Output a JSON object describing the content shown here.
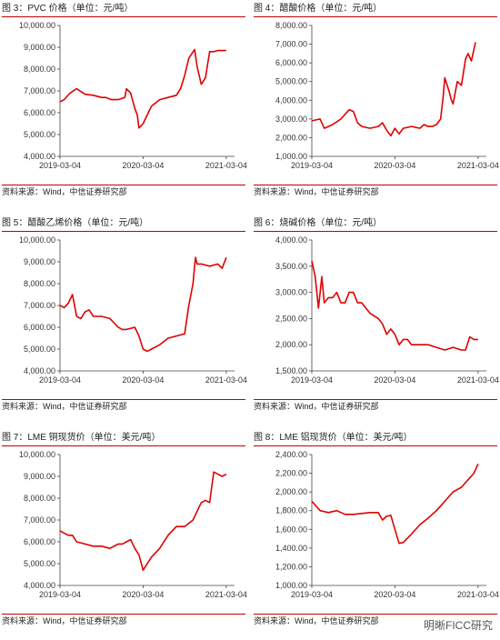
{
  "colors": {
    "series": "#e00000",
    "rule": "#c00000"
  },
  "source_text": "资料来源：Wind，中信证券研究部",
  "watermark": "明晰FICC研究",
  "chart_data": [
    {
      "type": "line",
      "title": "图 3：PVC 价格（单位：元/吨）",
      "ylim": [
        4000,
        10000
      ],
      "yticks": [
        4000,
        5000,
        6000,
        7000,
        8000,
        9000,
        10000
      ],
      "ytick_labels": [
        "4,000.00",
        "5,000.00",
        "6,000.00",
        "7,000.00",
        "8,000.00",
        "9,000.00",
        "10,000.00"
      ],
      "xticks": [
        0,
        1,
        2
      ],
      "xtick_labels": [
        "2019-03-04",
        "2020-03-04",
        "2021-03-04"
      ],
      "xlim": [
        0,
        2.1
      ],
      "series": [
        {
          "x": [
            0,
            0.05,
            0.12,
            0.2,
            0.3,
            0.4,
            0.5,
            0.55,
            0.62,
            0.7,
            0.78,
            0.8,
            0.85,
            0.9,
            0.93,
            0.95,
            1.0,
            1.05,
            1.1,
            1.2,
            1.3,
            1.4,
            1.45,
            1.5,
            1.55,
            1.62,
            1.65,
            1.7,
            1.75,
            1.8,
            1.85,
            1.9,
            2.0
          ],
          "y": [
            6500,
            6600,
            6900,
            7100,
            6850,
            6800,
            6700,
            6700,
            6600,
            6600,
            6700,
            7100,
            6900,
            6200,
            5900,
            5300,
            5500,
            5900,
            6300,
            6600,
            6700,
            6800,
            7100,
            7700,
            8500,
            8900,
            8100,
            7300,
            7600,
            8800,
            8800,
            8850,
            8850
          ]
        }
      ]
    },
    {
      "type": "line",
      "title": "图 4：醋酸价格（单位：元/吨）",
      "ylim": [
        1000,
        8000
      ],
      "yticks": [
        1000,
        2000,
        3000,
        4000,
        5000,
        6000,
        7000,
        8000
      ],
      "ytick_labels": [
        "1,000.00",
        "2,000.00",
        "3,000.00",
        "4,000.00",
        "5,000.00",
        "6,000.00",
        "7,000.00",
        "8,000.00"
      ],
      "xticks": [
        0,
        1,
        2
      ],
      "xtick_labels": [
        "2019-03-04",
        "2020-03-04",
        "2021-03-04"
      ],
      "xlim": [
        0,
        2.1
      ],
      "series": [
        {
          "x": [
            0,
            0.1,
            0.15,
            0.2,
            0.25,
            0.35,
            0.45,
            0.5,
            0.55,
            0.6,
            0.7,
            0.8,
            0.85,
            0.9,
            0.95,
            1.0,
            1.05,
            1.1,
            1.2,
            1.3,
            1.35,
            1.4,
            1.45,
            1.5,
            1.55,
            1.58,
            1.6,
            1.65,
            1.68,
            1.7,
            1.75,
            1.8,
            1.85,
            1.88,
            1.92,
            1.97
          ],
          "y": [
            2900,
            3000,
            2500,
            2600,
            2700,
            3000,
            3500,
            3400,
            2800,
            2600,
            2500,
            2600,
            2800,
            2400,
            2100,
            2500,
            2200,
            2500,
            2600,
            2500,
            2700,
            2600,
            2600,
            2700,
            3000,
            4200,
            5200,
            4500,
            4000,
            3800,
            5000,
            4800,
            6200,
            6500,
            6100,
            7100
          ]
        }
      ]
    },
    {
      "type": "line",
      "title": "图 5：醋酸乙烯价格（单位：元/吨）",
      "ylim": [
        4000,
        10000
      ],
      "yticks": [
        4000,
        5000,
        6000,
        7000,
        8000,
        9000,
        10000
      ],
      "ytick_labels": [
        "4,000.00",
        "5,000.00",
        "6,000.00",
        "7,000.00",
        "8,000.00",
        "9,000.00",
        "10,000.00"
      ],
      "xticks": [
        0,
        1,
        2
      ],
      "xtick_labels": [
        "2019-03-04",
        "2020-03-04",
        "2021-03-04"
      ],
      "xlim": [
        0,
        2.1
      ],
      "series": [
        {
          "x": [
            0,
            0.05,
            0.1,
            0.15,
            0.2,
            0.25,
            0.3,
            0.35,
            0.4,
            0.5,
            0.6,
            0.7,
            0.75,
            0.8,
            0.9,
            0.95,
            1.0,
            1.05,
            1.1,
            1.2,
            1.3,
            1.4,
            1.5,
            1.55,
            1.6,
            1.63,
            1.65,
            1.7,
            1.8,
            1.9,
            1.95,
            2.0
          ],
          "y": [
            7000,
            6900,
            7100,
            7500,
            6500,
            6400,
            6700,
            6800,
            6500,
            6500,
            6400,
            6000,
            5900,
            5900,
            6000,
            5600,
            5000,
            4900,
            5000,
            5200,
            5500,
            5600,
            5700,
            7000,
            8000,
            9200,
            8900,
            8900,
            8800,
            8900,
            8700,
            9200
          ]
        }
      ]
    },
    {
      "type": "line",
      "title": "图 6：烧碱价格（单位：元/吨）",
      "ylim": [
        1500,
        4000
      ],
      "yticks": [
        1500,
        2000,
        2500,
        3000,
        3500,
        4000
      ],
      "ytick_labels": [
        "1,500.00",
        "2,000.00",
        "2,500.00",
        "3,000.00",
        "3,500.00",
        "4,000.00"
      ],
      "xticks": [
        0,
        1,
        2
      ],
      "xtick_labels": [
        "2019-03-04",
        "2020-03-04",
        "2021-03-04"
      ],
      "xlim": [
        0,
        2.1
      ],
      "series": [
        {
          "x": [
            0,
            0.04,
            0.08,
            0.12,
            0.15,
            0.2,
            0.25,
            0.3,
            0.35,
            0.4,
            0.45,
            0.5,
            0.55,
            0.6,
            0.7,
            0.8,
            0.85,
            0.9,
            0.95,
            1.0,
            1.05,
            1.1,
            1.15,
            1.2,
            1.3,
            1.4,
            1.5,
            1.6,
            1.7,
            1.8,
            1.85,
            1.9,
            1.95,
            2.0
          ],
          "y": [
            3600,
            3300,
            2700,
            3300,
            2800,
            2900,
            2900,
            3000,
            2800,
            2800,
            3000,
            3000,
            2800,
            2800,
            2600,
            2500,
            2400,
            2200,
            2300,
            2200,
            2000,
            2100,
            2100,
            2000,
            2000,
            2000,
            1950,
            1900,
            1950,
            1900,
            1900,
            2150,
            2100,
            2100
          ]
        }
      ]
    },
    {
      "type": "line",
      "title": "图 7：LME 铜现货价（单位：美元/吨）",
      "ylim": [
        4000,
        10000
      ],
      "yticks": [
        4000,
        5000,
        6000,
        7000,
        8000,
        9000,
        10000
      ],
      "ytick_labels": [
        "4,000.00",
        "5,000.00",
        "6,000.00",
        "7,000.00",
        "8,000.00",
        "9,000.00",
        "10,000.00"
      ],
      "xticks": [
        0,
        1,
        2
      ],
      "xtick_labels": [
        "2019-03-04",
        "2020-03-04",
        "2021-03-04"
      ],
      "xlim": [
        0,
        2.1
      ],
      "series": [
        {
          "x": [
            0,
            0.05,
            0.1,
            0.15,
            0.2,
            0.3,
            0.4,
            0.5,
            0.6,
            0.7,
            0.75,
            0.8,
            0.85,
            0.9,
            0.95,
            1.0,
            1.05,
            1.1,
            1.2,
            1.3,
            1.4,
            1.5,
            1.6,
            1.7,
            1.75,
            1.8,
            1.85,
            1.9,
            1.95,
            2.0
          ],
          "y": [
            6500,
            6400,
            6300,
            6300,
            6000,
            5900,
            5800,
            5800,
            5700,
            5900,
            5900,
            6000,
            6100,
            5700,
            5400,
            4700,
            5000,
            5300,
            5700,
            6300,
            6700,
            6700,
            7000,
            7800,
            7900,
            7800,
            9200,
            9100,
            9000,
            9100
          ]
        }
      ]
    },
    {
      "type": "line",
      "title": "图 8：LME 铝现货价（单位：美元/吨）",
      "ylim": [
        1000,
        2400
      ],
      "yticks": [
        1000,
        1200,
        1400,
        1600,
        1800,
        2000,
        2200,
        2400
      ],
      "ytick_labels": [
        "1,000.00",
        "1,200.00",
        "1,400.00",
        "1,600.00",
        "1,800.00",
        "2,000.00",
        "2,200.00",
        "2,400.00"
      ],
      "xticks": [
        0,
        1,
        2
      ],
      "xtick_labels": [
        "2019-03-04",
        "2020-03-04",
        "2021-03-04"
      ],
      "xlim": [
        0,
        2.1
      ],
      "series": [
        {
          "x": [
            0,
            0.05,
            0.1,
            0.2,
            0.3,
            0.4,
            0.5,
            0.6,
            0.7,
            0.8,
            0.85,
            0.9,
            0.95,
            1.0,
            1.05,
            1.1,
            1.2,
            1.3,
            1.4,
            1.5,
            1.6,
            1.7,
            1.8,
            1.85,
            1.9,
            1.95,
            2.0
          ],
          "y": [
            1900,
            1850,
            1800,
            1780,
            1800,
            1760,
            1760,
            1770,
            1780,
            1780,
            1700,
            1740,
            1750,
            1600,
            1450,
            1460,
            1550,
            1650,
            1720,
            1800,
            1900,
            2000,
            2050,
            2100,
            2150,
            2200,
            2300
          ]
        }
      ]
    }
  ]
}
